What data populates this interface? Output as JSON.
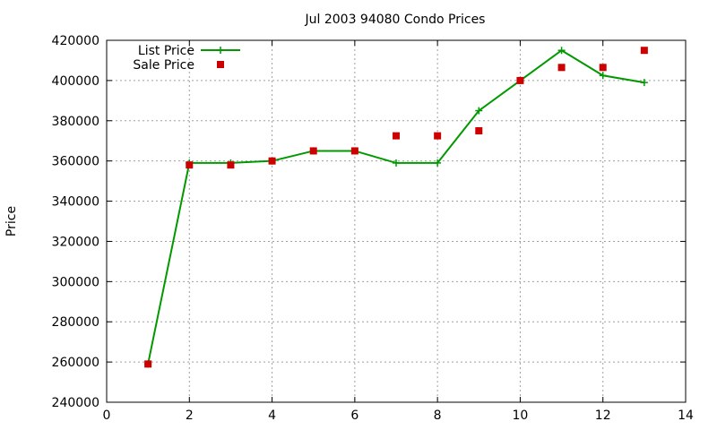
{
  "chart_data": {
    "type": "line",
    "title": "Jul 2003 94080 Condo Prices",
    "xlabel": "",
    "ylabel": "Price",
    "xlim": [
      0,
      14
    ],
    "ylim": [
      240000,
      420000
    ],
    "xticks": [
      0,
      2,
      4,
      6,
      8,
      10,
      12,
      14
    ],
    "yticks": [
      240000,
      260000,
      280000,
      300000,
      320000,
      340000,
      360000,
      380000,
      400000,
      420000
    ],
    "grid": true,
    "legend_position": "top-left",
    "series": [
      {
        "name": "List Price",
        "style": "linespoints",
        "color": "#009900",
        "points": [
          [
            1,
            259000
          ],
          [
            2,
            359000
          ],
          [
            3,
            359000
          ],
          [
            4,
            360000
          ],
          [
            5,
            365000
          ],
          [
            6,
            365000
          ],
          [
            7,
            359000
          ],
          [
            8,
            359000
          ],
          [
            9,
            385000
          ],
          [
            10,
            400000
          ],
          [
            11,
            415000
          ],
          [
            12,
            402500
          ],
          [
            13,
            399000
          ]
        ]
      },
      {
        "name": "Sale Price",
        "style": "points",
        "color": "#cc0000",
        "points": [
          [
            1,
            259000
          ],
          [
            2,
            358000
          ],
          [
            3,
            358000
          ],
          [
            4,
            360000
          ],
          [
            5,
            365000
          ],
          [
            6,
            365000
          ],
          [
            7,
            372500
          ],
          [
            8,
            372500
          ],
          [
            9,
            375000
          ],
          [
            10,
            400000
          ],
          [
            11,
            406500
          ],
          [
            12,
            406500
          ],
          [
            13,
            415000
          ]
        ]
      }
    ]
  }
}
